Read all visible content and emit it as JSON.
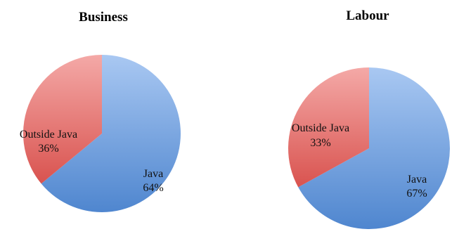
{
  "chart_data": [
    {
      "type": "pie",
      "title": "Business",
      "categories": [
        "Java",
        "Outside Java"
      ],
      "values": [
        64,
        36
      ],
      "labels": [
        {
          "name": "Java",
          "value": "64%"
        },
        {
          "name": "Outside Java",
          "value": "36%"
        }
      ],
      "colors": [
        "#6f9fdc",
        "#e4706e"
      ],
      "start_angle_deg": 0,
      "direction": "clockwise"
    },
    {
      "type": "pie",
      "title": "Labour",
      "categories": [
        "Java",
        "Outside Java"
      ],
      "values": [
        67,
        33
      ],
      "labels": [
        {
          "name": "Java",
          "value": "67%"
        },
        {
          "name": "Outside Java",
          "value": "33%"
        }
      ],
      "colors": [
        "#6f9fdc",
        "#e4706e"
      ],
      "start_angle_deg": 0,
      "direction": "clockwise"
    }
  ]
}
